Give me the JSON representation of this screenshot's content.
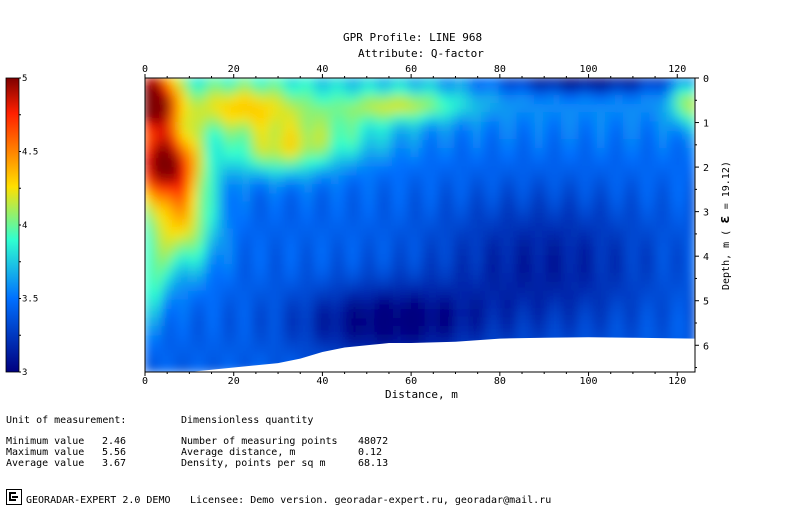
{
  "chart_data": {
    "type": "heatmap",
    "title": "GPR Profile: LINE 968",
    "subtitle": "Attribute:  Q-factor",
    "xlabel": "Distance, m",
    "ylabel": "Depth, m (",
    "ylabel_eps": "ε",
    "ylabel_suffix": " = 19.12)",
    "xlim": [
      0,
      124
    ],
    "ylim": [
      0,
      6.6
    ],
    "x_ticks": [
      "0",
      "20",
      "40",
      "60",
      "80",
      "100",
      "120"
    ],
    "x_tick_values": [
      0,
      20,
      40,
      60,
      80,
      100,
      120
    ],
    "y_ticks": [
      "0",
      "1",
      "2",
      "3",
      "4",
      "5",
      "6"
    ],
    "y_tick_values": [
      0,
      1,
      2,
      3,
      4,
      5,
      6
    ],
    "colorbar": {
      "min": 3,
      "max": 5,
      "tick_labels": [
        "5",
        "4.5",
        "4",
        "3.5",
        "3"
      ],
      "tick_values": [
        5,
        4.5,
        4,
        3.5,
        3
      ]
    },
    "bottom_boundary": {
      "x": [
        0,
        10,
        20,
        30,
        35,
        40,
        45,
        50,
        55,
        60,
        70,
        80,
        90,
        100,
        110,
        124
      ],
      "depth": [
        6.6,
        6.6,
        6.5,
        6.4,
        6.3,
        6.15,
        6.05,
        6.0,
        5.95,
        5.95,
        5.92,
        5.85,
        5.83,
        5.82,
        5.83,
        5.85
      ]
    }
  },
  "stats": {
    "unit_label": "Unit of measurement:",
    "unit_value": "Dimensionless quantity",
    "min_label": "Minimum value",
    "min_value": "2.46",
    "max_label": "Maximum value",
    "max_value": "5.56",
    "avg_label": "Average value",
    "avg_value": "3.67",
    "points_label": "Number of measuring points",
    "points_value": "48072",
    "dist_label": "Average distance, m",
    "dist_value": "0.12",
    "density_label": "Density, points per sq m",
    "density_value": "68.13"
  },
  "footer": {
    "app": "GEORADAR-EXPERT 2.0 DEMO",
    "license": "Licensee: Demo version. georadar-expert.ru, georadar@mail.ru"
  }
}
